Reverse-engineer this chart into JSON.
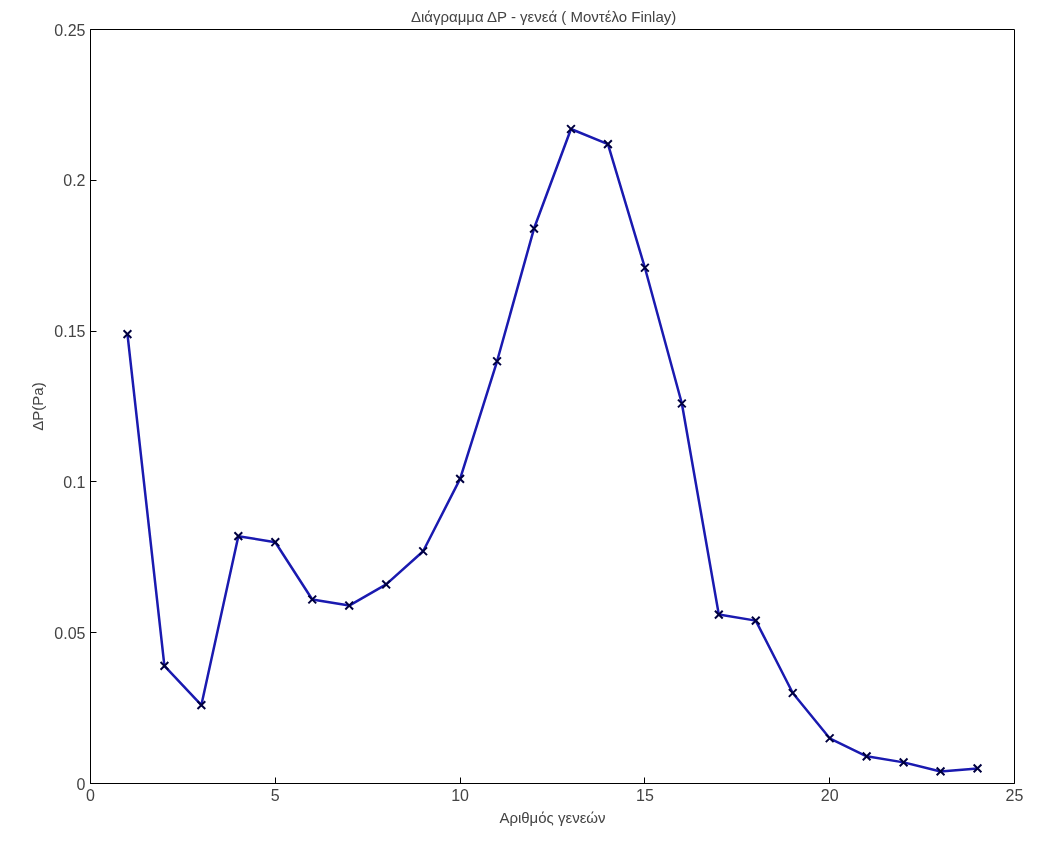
{
  "chart_data": {
    "type": "line",
    "title": "Διάγραμμα ΔP - γενεά     ( Μοντέλο Finlay)",
    "xlabel": "Αριθμός γενεών",
    "ylabel": "ΔP(Pa)",
    "x": [
      1,
      2,
      3,
      4,
      5,
      6,
      7,
      8,
      9,
      10,
      11,
      12,
      13,
      14,
      15,
      16,
      17,
      18,
      19,
      20,
      21,
      22,
      23,
      24
    ],
    "series": [
      {
        "color": "#1a1ab0",
        "values": [
          0.149,
          0.039,
          0.026,
          0.082,
          0.08,
          0.061,
          0.059,
          0.066,
          0.077,
          0.101,
          0.14,
          0.184,
          0.217,
          0.212,
          0.171,
          0.126,
          0.056,
          0.054,
          0.03,
          0.015,
          0.009,
          0.007,
          0.004,
          0.005
        ]
      }
    ],
    "xlim": [
      0,
      25
    ],
    "xticks": [
      0,
      5,
      10,
      15,
      20,
      25
    ],
    "ylim": [
      0,
      0.25
    ],
    "yticks": [
      0,
      0.05,
      0.1,
      0.15,
      0.2,
      0.25
    ],
    "grid": false,
    "marker": "cross",
    "line_style": "solid"
  }
}
